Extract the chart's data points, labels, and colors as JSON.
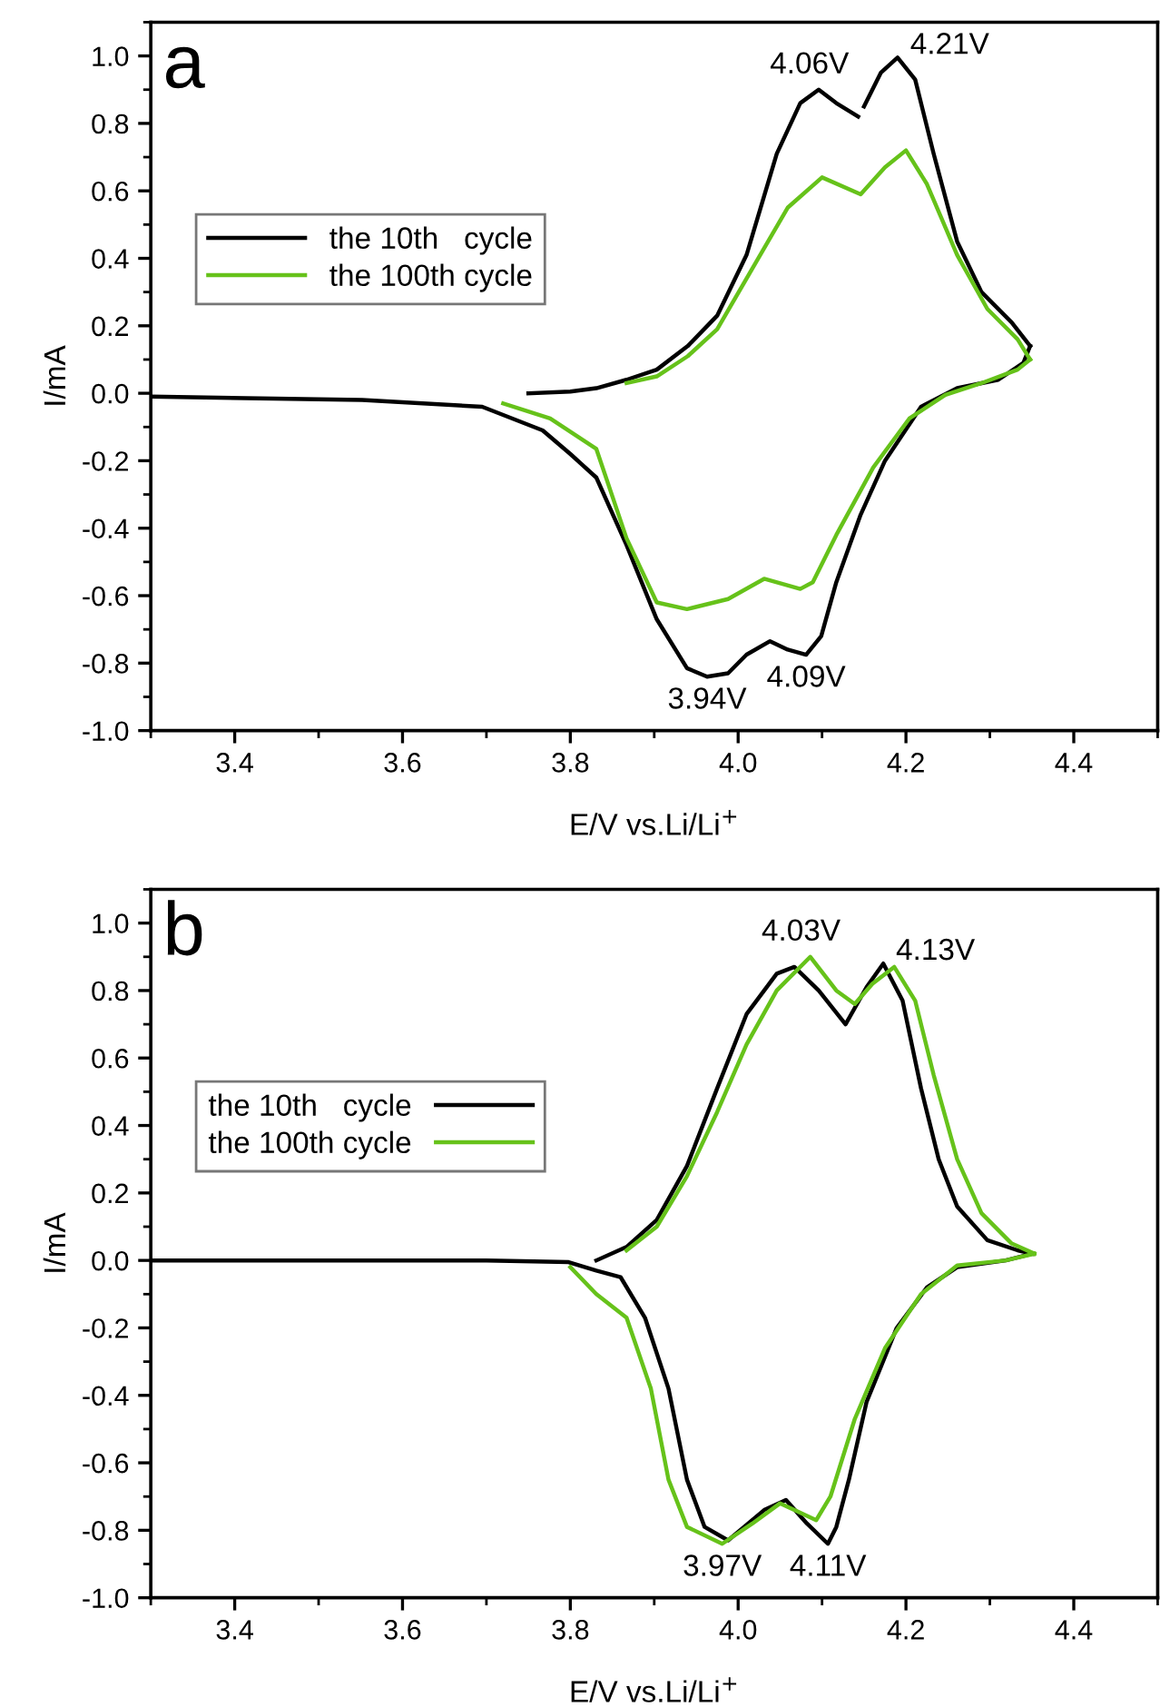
{
  "chart_data": [
    {
      "type": "line",
      "title": "a",
      "xlabel": "E/V vs.Li/Li$^{+}$",
      "ylabel": "I/mA",
      "xlim": [
        3.3,
        4.5
      ],
      "ylim": [
        -1.0,
        1.1
      ],
      "xticks": [
        3.4,
        3.6,
        3.8,
        {
          "value": 4.0,
          "label": "4.0"
        },
        4.2,
        4.4
      ],
      "yticks": [
        {
          "value": -1.0,
          "label": "-1.0"
        },
        -0.8,
        -0.6,
        -0.4,
        -0.2,
        {
          "value": 0.0,
          "label": "0.0"
        },
        0.2,
        0.4,
        0.6,
        0.8,
        {
          "value": 1.0,
          "label": "1.0"
        }
      ],
      "legend": "upper left",
      "grid": false,
      "marker": "none",
      "line_style": "solid",
      "series": [
        {
          "name": "the 10th   cycle",
          "color": "#000000",
          "x": [
            3.75,
            3.8,
            3.831,
            3.867,
            3.903,
            3.94,
            3.975,
            4.01,
            4.046,
            4.074,
            4.096,
            4.117,
            4.143,
            4.147,
            4.15,
            4.17,
            4.19,
            4.211,
            4.233,
            4.261,
            4.29,
            4.326,
            4.348
          ],
          "values": [
            0.0,
            0.005,
            0.015,
            0.04,
            0.07,
            0.14,
            0.23,
            0.41,
            0.71,
            0.86,
            0.9,
            0.86,
            0.82,
            null,
            0.85,
            0.95,
            0.995,
            0.93,
            0.71,
            0.45,
            0.3,
            0.21,
            0.14
          ]
        },
        {
          "color": "#000000",
          "x": [
            3.3,
            3.552,
            3.695,
            3.767,
            3.8,
            3.831,
            3.867,
            3.903,
            3.939,
            3.963,
            3.988,
            4.01,
            4.038,
            4.059,
            4.081,
            4.099,
            4.117,
            4.146,
            4.175,
            4.218,
            4.261,
            4.31,
            4.34,
            4.348
          ],
          "values": [
            -0.01,
            -0.02,
            -0.04,
            -0.11,
            -0.18,
            -0.25,
            -0.45,
            -0.67,
            -0.815,
            -0.84,
            -0.83,
            -0.775,
            -0.735,
            -0.76,
            -0.775,
            -0.72,
            -0.56,
            -0.36,
            -0.2,
            -0.04,
            0.015,
            0.04,
            0.09,
            0.14
          ]
        },
        {
          "name": "the 100th cycle",
          "color": "#66c21a",
          "x": [
            3.867,
            3.903,
            3.94,
            3.975,
            4.017,
            4.059,
            4.1,
            4.146,
            4.175,
            4.2,
            4.225,
            4.261,
            4.297,
            4.333,
            4.348
          ],
          "values": [
            0.03,
            0.05,
            0.11,
            0.19,
            0.37,
            0.55,
            0.64,
            0.59,
            0.67,
            0.72,
            0.62,
            0.41,
            0.25,
            0.16,
            0.1
          ]
        },
        {
          "color": "#66c21a",
          "x": [
            3.72,
            3.776,
            3.831,
            3.867,
            3.903,
            3.939,
            3.988,
            4.031,
            4.074,
            4.089,
            4.117,
            4.161,
            4.204,
            4.247,
            4.29,
            4.333,
            4.348
          ],
          "values": [
            -0.03,
            -0.075,
            -0.165,
            -0.43,
            -0.62,
            -0.64,
            -0.61,
            -0.55,
            -0.58,
            -0.56,
            -0.42,
            -0.22,
            -0.075,
            -0.005,
            0.03,
            0.07,
            0.1
          ]
        }
      ],
      "annotations": [
        {
          "text": "4.06V",
          "x": 4.096,
          "y": 0.9
        },
        {
          "text": "4.21V",
          "x": 4.19,
          "y": 0.995
        },
        {
          "text": "3.94V",
          "x": 3.963,
          "y": -0.84
        },
        {
          "text": "4.09V",
          "x": 4.081,
          "y": -0.775
        }
      ]
    },
    {
      "type": "line",
      "title": "b",
      "xlabel": "E/V vs.Li/Li$^{+}$",
      "ylabel": "I/mA",
      "xlim": [
        3.3,
        4.5
      ],
      "ylim": [
        -1.0,
        1.1
      ],
      "xticks": [
        3.4,
        3.6,
        3.8,
        {
          "value": 4.0,
          "label": "4.0"
        },
        4.2,
        4.4
      ],
      "yticks": [
        {
          "value": -1.0,
          "label": "-1.0"
        },
        -0.8,
        -0.6,
        -0.4,
        -0.2,
        {
          "value": 0.0,
          "label": "0.0"
        },
        0.2,
        0.4,
        0.6,
        0.8,
        {
          "value": 1.0,
          "label": "1.0"
        }
      ],
      "legend": "upper left",
      "grid": false,
      "marker": "none",
      "line_style": "solid",
      "series": [
        {
          "name": "the 10th   cycle",
          "color": "#000000",
          "x": [
            3.831,
            3.867,
            3.903,
            3.939,
            3.975,
            4.01,
            4.046,
            4.067,
            4.096,
            4.128,
            4.153,
            4.173,
            4.196,
            4.218,
            4.239,
            4.261,
            4.297,
            4.333,
            4.351
          ],
          "values": [
            0.0,
            0.04,
            0.12,
            0.28,
            0.51,
            0.73,
            0.85,
            0.87,
            0.8,
            0.7,
            0.81,
            0.88,
            0.77,
            0.51,
            0.3,
            0.16,
            0.06,
            0.03,
            0.02
          ]
        },
        {
          "color": "#000000",
          "x": [
            3.3,
            3.5,
            3.7,
            3.798,
            3.831,
            3.86,
            3.889,
            3.917,
            3.939,
            3.96,
            3.988,
            4.031,
            4.057,
            4.082,
            4.107,
            4.117,
            4.132,
            4.153,
            4.189,
            4.225,
            4.261,
            4.319,
            4.351
          ],
          "values": [
            0.0,
            0.0,
            0.0,
            -0.005,
            -0.03,
            -0.05,
            -0.17,
            -0.38,
            -0.65,
            -0.79,
            -0.83,
            -0.74,
            -0.71,
            -0.78,
            -0.84,
            -0.79,
            -0.65,
            -0.42,
            -0.2,
            -0.08,
            -0.02,
            0.0,
            0.02
          ]
        },
        {
          "name": "the 100th cycle",
          "color": "#66c21a",
          "x": [
            3.867,
            3.903,
            3.939,
            3.975,
            4.01,
            4.046,
            4.086,
            4.117,
            4.139,
            4.16,
            4.186,
            4.211,
            4.233,
            4.261,
            4.29,
            4.326,
            4.353
          ],
          "values": [
            0.03,
            0.1,
            0.25,
            0.44,
            0.64,
            0.8,
            0.9,
            0.8,
            0.76,
            0.82,
            0.87,
            0.77,
            0.55,
            0.3,
            0.14,
            0.05,
            0.02
          ]
        },
        {
          "color": "#66c21a",
          "x": [
            3.8,
            3.831,
            3.867,
            3.896,
            3.917,
            3.939,
            3.981,
            4.017,
            4.05,
            4.067,
            4.093,
            4.11,
            4.139,
            4.175,
            4.218,
            4.261,
            4.319,
            4.353
          ],
          "values": [
            -0.02,
            -0.1,
            -0.17,
            -0.38,
            -0.65,
            -0.79,
            -0.84,
            -0.78,
            -0.72,
            -0.74,
            -0.77,
            -0.7,
            -0.47,
            -0.26,
            -0.1,
            -0.015,
            0.0,
            0.02
          ]
        }
      ],
      "annotations": [
        {
          "text": "4.03V",
          "x": 4.086,
          "y": 0.9
        },
        {
          "text": "4.13V",
          "x": 4.173,
          "y": 0.88
        },
        {
          "text": "3.97V",
          "x": 3.981,
          "y": -0.84
        },
        {
          "text": "4.11V",
          "x": 4.107,
          "y": -0.84
        }
      ]
    }
  ]
}
